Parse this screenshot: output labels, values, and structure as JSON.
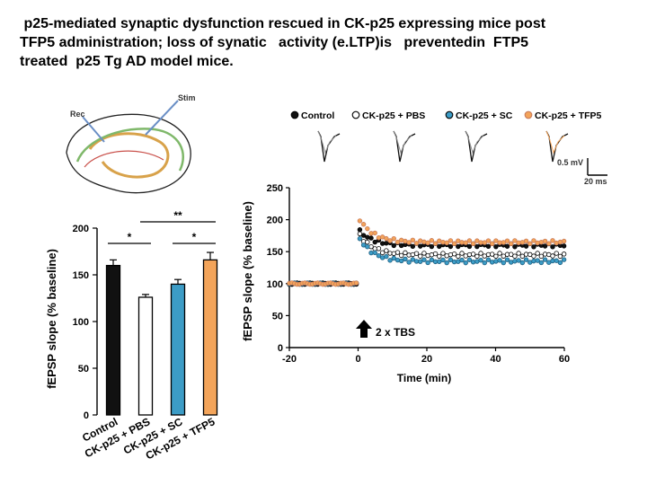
{
  "title_lines": [
    " p25-mediated synaptic dysfunction rescued in CK-p25 expressing mice post",
    "TFP5 administration; loss of synatic   activity (e.LTP)is   preventedin  FTP5",
    "treated  p25 Tg AD model mice."
  ],
  "diagram": {
    "label_rec": "Rec",
    "label_stim": "Stim"
  },
  "colors": {
    "control": "#111111",
    "ck_p25_pbs": "#ffffff",
    "ck_p25_sc": "#3c9cc6",
    "ck_p25_tfp5": "#f3a45a",
    "tfp5_marker": "#c97b5a"
  },
  "chart_data": [
    {
      "type": "bar",
      "ylabel": "fEPSP slope (% baseline)",
      "ylim": [
        0,
        200
      ],
      "yticks": [
        "0",
        "50",
        "100",
        "150",
        "200"
      ],
      "categories": [
        "Control",
        "CK-p25 + PBS",
        "CK-p25 + SC",
        "CK-p25 + TFP5"
      ],
      "values": [
        160,
        126,
        140,
        166
      ],
      "errors": [
        6,
        3,
        5,
        8
      ],
      "significance": [
        "*",
        "*",
        "**"
      ]
    },
    {
      "type": "scatter",
      "xlabel": "Time (min)",
      "ylabel": "fEPSP slope (% baseline)",
      "xlim": [
        -20,
        60
      ],
      "ylim": [
        0,
        250
      ],
      "xticks": [
        "-20",
        "0",
        "20",
        "40",
        "60"
      ],
      "yticks": [
        "0",
        "50",
        "100",
        "150",
        "200",
        "250"
      ],
      "legend": [
        "Control",
        "CK-p25 + PBS",
        "CK-p25 + SC",
        "CK-p25 + TFP5"
      ],
      "legend_position": "top",
      "annotation": "2 x TBS",
      "scale_bar": {
        "y_label": "0.5 mV",
        "x_label": "20 ms"
      },
      "series": [
        {
          "name": "Control",
          "baseline": 100,
          "peak": 185,
          "plateau": 160
        },
        {
          "name": "CK-p25 + PBS",
          "baseline": 100,
          "peak": 180,
          "plateau": 145
        },
        {
          "name": "CK-p25 + SC",
          "baseline": 100,
          "peak": 175,
          "plateau": 135
        },
        {
          "name": "CK-p25 + TFP5",
          "baseline": 100,
          "peak": 205,
          "plateau": 165
        }
      ]
    }
  ]
}
